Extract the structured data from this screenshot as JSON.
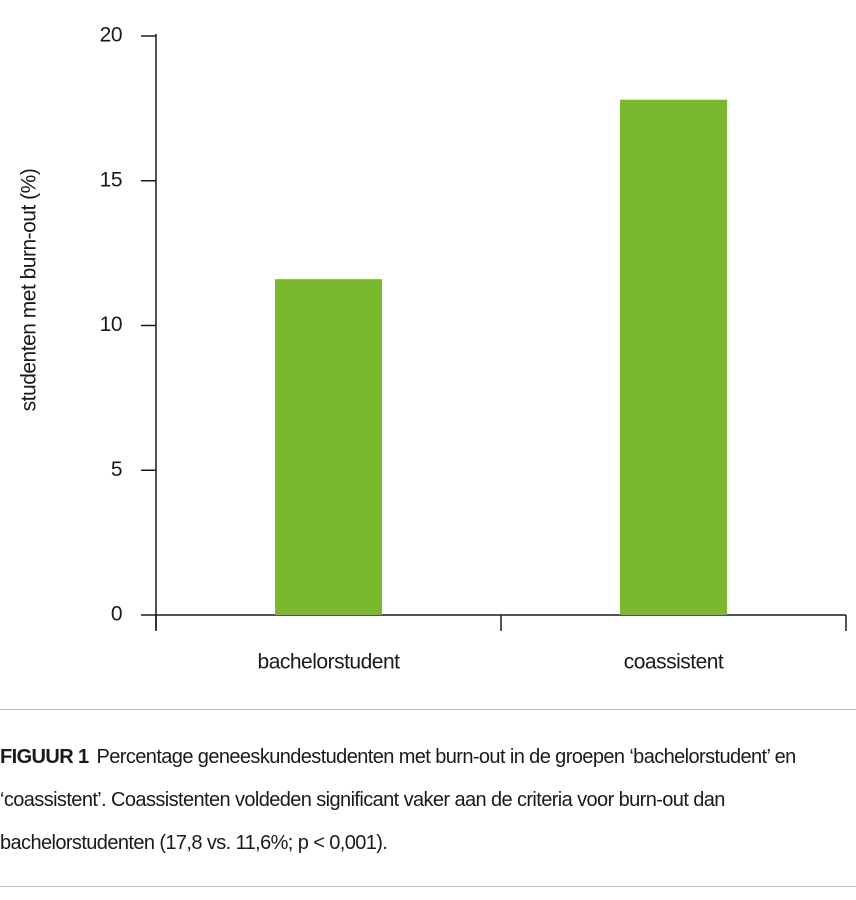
{
  "chart_data": {
    "type": "bar",
    "y_label": "studenten met burn-out (%)",
    "categories": [
      "bachelorstudent",
      "coassistent"
    ],
    "values": [
      11.6,
      17.8
    ],
    "color": "#7ab82e",
    "ylim": [
      0,
      20
    ],
    "yticks": [
      0,
      5,
      10,
      15,
      20
    ],
    "caption_label": "FIGUUR 1",
    "caption": "Percentage geneeskundestudenten met burn-out in de groepen ‘bachelorstudent’ en ‘coassistent’. Coassistenten voldeden significant vaker aan de criteria voor burn-out dan bachelorstudenten (17,8 vs. 11,6%; p < 0,001)."
  }
}
